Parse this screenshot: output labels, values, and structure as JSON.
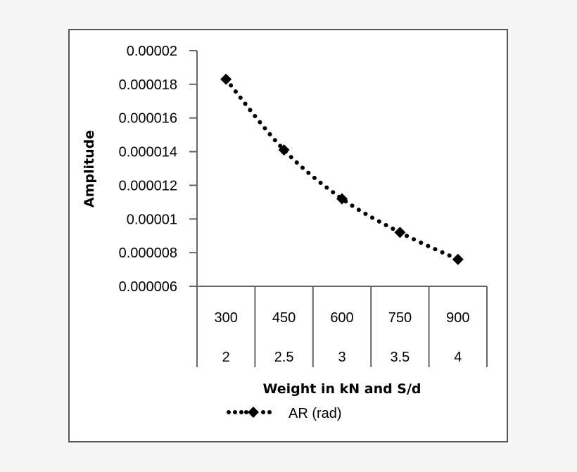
{
  "chart_data": {
    "type": "line",
    "title": "",
    "xlabel": "Weight in kN and S/d",
    "ylabel": "Amplitude",
    "categories": [
      "300",
      "450",
      "600",
      "750",
      "900"
    ],
    "categories_secondary": [
      "2",
      "2.5",
      "3",
      "3.5",
      "4"
    ],
    "series": [
      {
        "name": "AR (rad)",
        "line_style": "dotted",
        "marker": "diamond",
        "color": "#000000",
        "values": [
          1.83e-05,
          1.41e-05,
          1.12e-05,
          9.2e-06,
          7.6e-06
        ]
      }
    ],
    "yticks": [
      "0.00002",
      "0.000018",
      "0.000016",
      "0.000014",
      "0.000012",
      "0.00001",
      "0.000008",
      "0.000006"
    ],
    "ylim": [
      6e-06,
      2e-05
    ],
    "grid": false,
    "legend_position": "bottom"
  },
  "colors": {
    "background": "#f5f5f5",
    "plot_background": "#ffffff",
    "frame": "#555555",
    "axis": "#666666",
    "series": "#000000"
  }
}
